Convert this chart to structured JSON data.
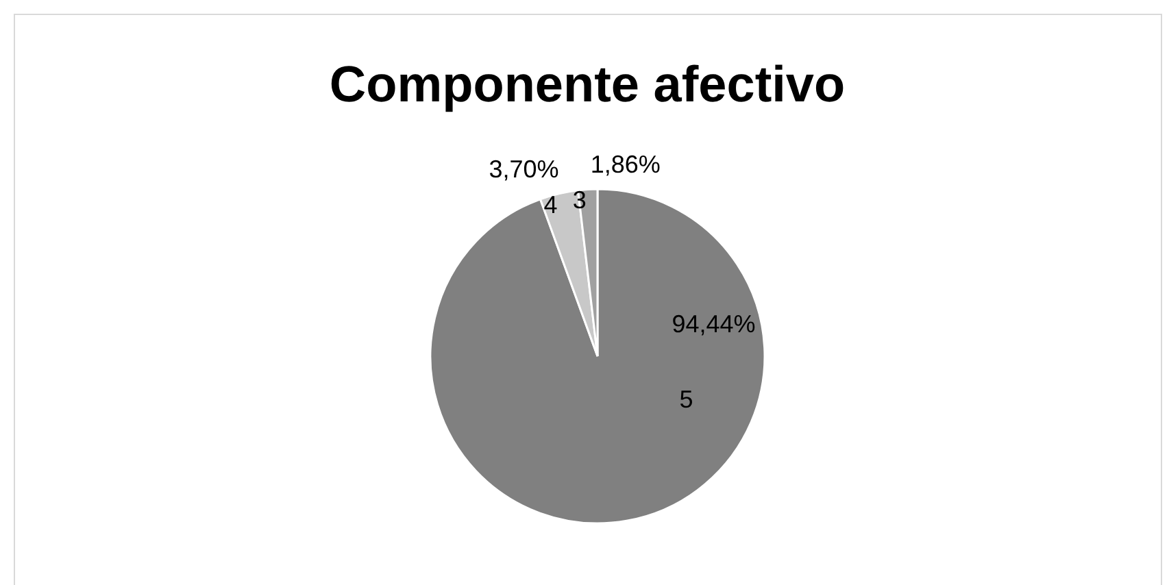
{
  "chart_data": {
    "type": "pie",
    "title": "Componente afectivo",
    "categories": [
      "5",
      "4",
      "3"
    ],
    "values": [
      94.44,
      3.7,
      1.86
    ],
    "value_labels": [
      "94,44%",
      "3,70%",
      "1,86%"
    ],
    "colors": [
      "#808080",
      "#c8c8c8",
      "#a0a0a0"
    ],
    "legend": false
  }
}
